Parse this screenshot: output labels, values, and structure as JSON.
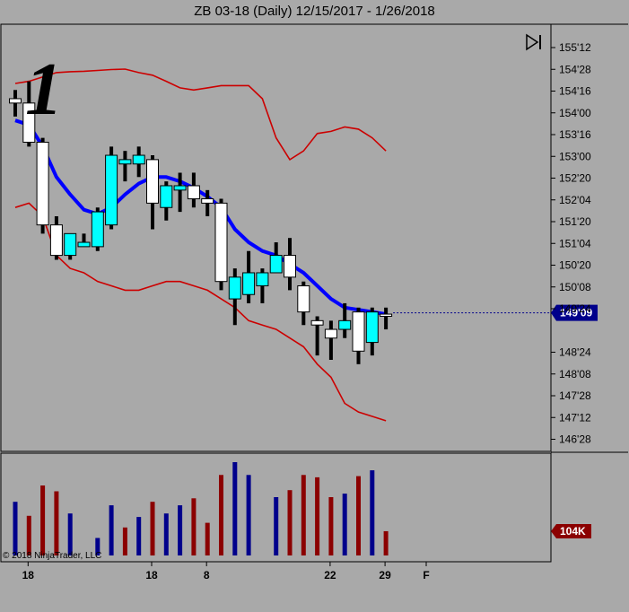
{
  "title": "ZB 03-18 (Daily)  12/15/2017 - 1/26/2018",
  "copyright": "© 2018 NinjaTrader, LLC",
  "overlay_digit": "1",
  "icons": {
    "play_end": "play-end-icon"
  },
  "colors": {
    "background": "#a9a9a9",
    "up_candle": "#00ffff",
    "down_candle": "#ffffff",
    "moving_average": "#0000ff",
    "bands": "#cc0000",
    "volume_up": "#00008b",
    "volume_down": "#8b0000",
    "price_marker": "#00008b",
    "volume_marker": "#8b0000"
  },
  "chart_data": {
    "type": "candlestick",
    "price_axis": {
      "ticks": [
        "155'12",
        "154'28",
        "154'16",
        "154'00",
        "153'16",
        "153'00",
        "152'20",
        "152'04",
        "151'20",
        "151'04",
        "150'20",
        "150'08",
        "149'24",
        "149'09",
        "148'24",
        "148'08",
        "147'28",
        "147'12",
        "146'28"
      ],
      "last_price_label": "149'09",
      "last_price": 149.28
    },
    "date_axis": {
      "labels": [
        "18",
        "18",
        "8",
        "22",
        "29",
        "F"
      ]
    },
    "candles": [
      {
        "o": 154.2,
        "h": 154.4,
        "l": 153.79,
        "c": 154.1
      },
      {
        "o": 154.1,
        "h": 154.6,
        "l": 153.1,
        "c": 153.2
      },
      {
        "o": 153.2,
        "h": 153.3,
        "l": 151.1,
        "c": 151.3
      },
      {
        "o": 151.3,
        "h": 151.5,
        "l": 150.5,
        "c": 150.6
      },
      {
        "o": 150.6,
        "h": 151.1,
        "l": 150.5,
        "c": 151.1
      },
      {
        "o": 150.8,
        "h": 151.1,
        "l": 150.8,
        "c": 150.9
      },
      {
        "o": 150.8,
        "h": 151.7,
        "l": 150.7,
        "c": 151.6
      },
      {
        "o": 151.3,
        "h": 153.1,
        "l": 151.2,
        "c": 152.9
      },
      {
        "o": 152.7,
        "h": 153.0,
        "l": 152.3,
        "c": 152.8
      },
      {
        "o": 152.7,
        "h": 153.1,
        "l": 152.4,
        "c": 152.9
      },
      {
        "o": 152.8,
        "h": 152.9,
        "l": 151.2,
        "c": 151.8
      },
      {
        "o": 151.7,
        "h": 152.3,
        "l": 151.4,
        "c": 152.2
      },
      {
        "o": 152.1,
        "h": 152.5,
        "l": 151.6,
        "c": 152.2
      },
      {
        "o": 152.2,
        "h": 152.5,
        "l": 151.7,
        "c": 151.9
      },
      {
        "o": 151.9,
        "h": 152.1,
        "l": 151.5,
        "c": 151.8
      },
      {
        "o": 151.8,
        "h": 151.9,
        "l": 149.8,
        "c": 150.0
      },
      {
        "o": 149.6,
        "h": 150.3,
        "l": 149.0,
        "c": 150.1
      },
      {
        "o": 149.7,
        "h": 150.7,
        "l": 149.5,
        "c": 150.2
      },
      {
        "o": 149.9,
        "h": 150.3,
        "l": 149.5,
        "c": 150.2
      },
      {
        "o": 150.2,
        "h": 150.9,
        "l": 150.2,
        "c": 150.6
      },
      {
        "o": 150.6,
        "h": 151.0,
        "l": 149.8,
        "c": 150.1
      },
      {
        "o": 149.9,
        "h": 150.0,
        "l": 149.0,
        "c": 149.3
      },
      {
        "o": 149.1,
        "h": 149.2,
        "l": 148.3,
        "c": 149.0
      },
      {
        "o": 148.9,
        "h": 149.1,
        "l": 148.2,
        "c": 148.7
      },
      {
        "o": 148.9,
        "h": 149.5,
        "l": 148.7,
        "c": 149.1
      },
      {
        "o": 149.3,
        "h": 149.4,
        "l": 148.1,
        "c": 148.4
      },
      {
        "o": 148.6,
        "h": 149.4,
        "l": 148.3,
        "c": 149.3
      },
      {
        "o": 149.25,
        "h": 149.4,
        "l": 148.9,
        "c": 149.2
      }
    ],
    "moving_average": [
      153.7,
      153.6,
      153.1,
      152.4,
      152.0,
      151.65,
      151.55,
      151.7,
      152.0,
      152.25,
      152.4,
      152.4,
      152.3,
      152.15,
      151.95,
      151.7,
      151.2,
      150.9,
      150.7,
      150.6,
      150.4,
      150.2,
      149.9,
      149.6,
      149.4,
      149.35,
      149.3,
      149.25
    ],
    "upper_band": [
      154.55,
      154.6,
      154.7,
      154.8,
      154.82,
      154.83,
      154.85,
      154.87,
      154.88,
      154.8,
      154.74,
      154.6,
      154.45,
      154.4,
      154.45,
      154.5,
      154.5,
      154.5,
      154.2,
      153.3,
      152.8,
      153.0,
      153.4,
      153.45,
      153.55,
      153.5,
      153.3,
      153.0
    ],
    "lower_band": [
      151.7,
      151.8,
      151.5,
      150.6,
      150.3,
      150.2,
      150.0,
      149.9,
      149.8,
      149.8,
      149.9,
      150.0,
      150.0,
      149.9,
      149.8,
      149.6,
      149.4,
      149.1,
      149.0,
      148.9,
      148.7,
      148.5,
      148.1,
      147.8,
      147.2,
      147.0,
      146.9,
      146.8
    ],
    "volume": {
      "marker_label": "104K",
      "marker_value": 104,
      "bars": [
        {
          "v": 230,
          "up": true
        },
        {
          "v": 170,
          "up": false
        },
        {
          "v": 300,
          "up": false
        },
        {
          "v": 275,
          "up": false
        },
        {
          "v": 180,
          "up": true
        },
        {
          "v": 0,
          "up": true
        },
        {
          "v": 75,
          "up": true
        },
        {
          "v": 215,
          "up": true
        },
        {
          "v": 120,
          "up": false
        },
        {
          "v": 165,
          "up": true
        },
        {
          "v": 230,
          "up": false
        },
        {
          "v": 180,
          "up": true
        },
        {
          "v": 215,
          "up": true
        },
        {
          "v": 245,
          "up": false
        },
        {
          "v": 140,
          "up": false
        },
        {
          "v": 345,
          "up": false
        },
        {
          "v": 400,
          "up": true
        },
        {
          "v": 345,
          "up": true
        },
        {
          "v": 0,
          "up": true
        },
        {
          "v": 250,
          "up": true
        },
        {
          "v": 280,
          "up": false
        },
        {
          "v": 345,
          "up": false
        },
        {
          "v": 335,
          "up": false
        },
        {
          "v": 250,
          "up": false
        },
        {
          "v": 265,
          "up": true
        },
        {
          "v": 340,
          "up": false
        },
        {
          "v": 365,
          "up": true
        },
        {
          "v": 104,
          "up": false
        }
      ]
    }
  }
}
